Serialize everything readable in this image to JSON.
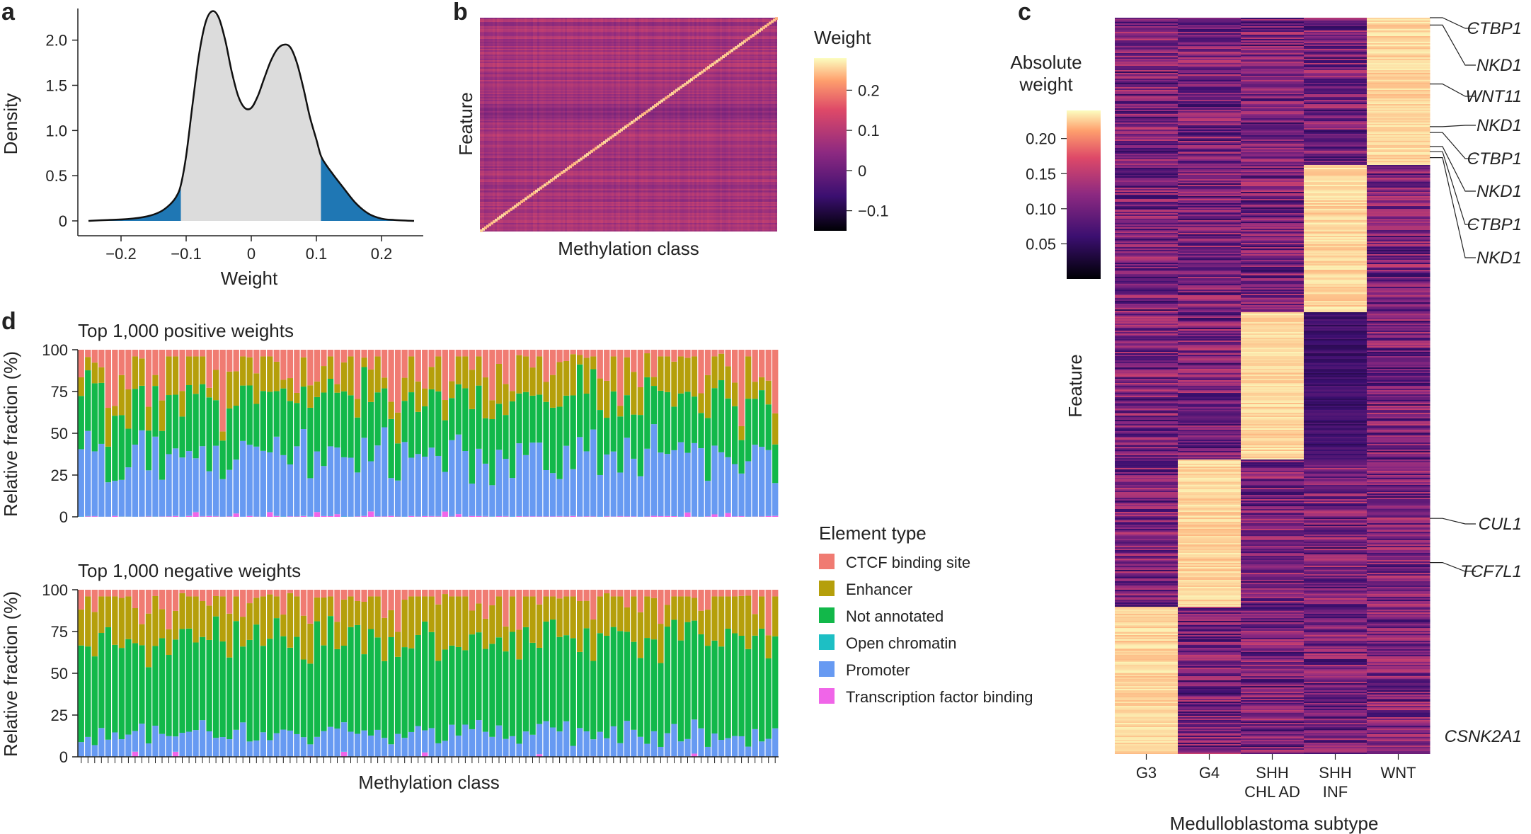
{
  "panel_labels": {
    "a": "a",
    "b": "b",
    "c": "c",
    "d": "d"
  },
  "colors": {
    "ctcf": "#F07B72",
    "enhancer": "#B59F0B",
    "not_annotated": "#12B84A",
    "open_chromatin": "#1DBFC4",
    "promoter": "#679AF2",
    "tf_binding": "#F065E8",
    "density_fill": "#DCDCDC",
    "density_tail": "#1F77B4"
  },
  "chart_data": [
    {
      "id": "a",
      "type": "area",
      "title": "",
      "xlabel": "Weight",
      "ylabel": "Density",
      "xlim": [
        -0.25,
        0.25
      ],
      "ylim": [
        0,
        2.35
      ],
      "xticks": [
        -0.2,
        -0.1,
        0,
        0.1,
        0.2
      ],
      "xtick_labels": [
        "−0.2",
        "−0.1",
        "0",
        "0.1",
        "0.2"
      ],
      "yticks": [
        0,
        0.5,
        1.0,
        1.5,
        2.0
      ],
      "ytick_labels": [
        "0",
        "0.5",
        "1.0",
        "1.5",
        "2.0"
      ],
      "tail_thresholds": [
        -0.108,
        0.107
      ],
      "x": [
        -0.25,
        -0.22,
        -0.19,
        -0.16,
        -0.14,
        -0.125,
        -0.115,
        -0.108,
        -0.1,
        -0.09,
        -0.08,
        -0.07,
        -0.06,
        -0.05,
        -0.04,
        -0.03,
        -0.02,
        -0.01,
        0,
        0.01,
        0.02,
        0.03,
        0.04,
        0.05,
        0.06,
        0.07,
        0.08,
        0.09,
        0.1,
        0.107,
        0.115,
        0.125,
        0.14,
        0.16,
        0.18,
        0.2,
        0.22,
        0.25
      ],
      "y": [
        0.0,
        0.01,
        0.02,
        0.05,
        0.1,
        0.18,
        0.27,
        0.4,
        0.72,
        1.3,
        1.85,
        2.2,
        2.32,
        2.25,
        2.0,
        1.65,
        1.38,
        1.25,
        1.25,
        1.38,
        1.58,
        1.77,
        1.9,
        1.95,
        1.92,
        1.75,
        1.47,
        1.15,
        0.9,
        0.72,
        0.62,
        0.52,
        0.38,
        0.2,
        0.08,
        0.025,
        0.01,
        0.0
      ]
    },
    {
      "id": "b",
      "type": "heatmap",
      "xlabel": "Methylation class",
      "ylabel": "Feature",
      "colorbar_title": "Weight",
      "colorbar_range": [
        -0.15,
        0.28
      ],
      "colorbar_ticks": [
        0.2,
        0.1,
        0,
        -0.1
      ],
      "colorbar_tick_labels": [
        "0.2",
        "0.1",
        "0",
        "−0.1"
      ],
      "description_values": {
        "background_weight": 0.05,
        "diagonal_weight": 0.25
      }
    },
    {
      "id": "c",
      "type": "heatmap",
      "xlabel": "Medulloblastoma subtype",
      "ylabel": "Feature",
      "colorbar_title_line1": "Absolute",
      "colorbar_title_line2": "weight",
      "colorbar_range": [
        0,
        0.24
      ],
      "colorbar_ticks": [
        0.2,
        0.15,
        0.1,
        0.05
      ],
      "colorbar_tick_labels": [
        "0.20",
        "0.15",
        "0.10",
        "0.05"
      ],
      "columns": [
        {
          "line1": "G3",
          "line2": ""
        },
        {
          "line1": "G4",
          "line2": ""
        },
        {
          "line1": "SHH",
          "line2": "CHL AD"
        },
        {
          "line1": "SHH",
          "line2": "INF"
        },
        {
          "line1": "WNT",
          "line2": ""
        }
      ],
      "blocks": [
        {
          "column": 4,
          "start_fraction": 0.0,
          "end_fraction": 0.2
        },
        {
          "column": 3,
          "start_fraction": 0.2,
          "end_fraction": 0.4
        },
        {
          "column": 2,
          "start_fraction": 0.4,
          "end_fraction": 0.6
        },
        {
          "column": 1,
          "start_fraction": 0.6,
          "end_fraction": 0.8
        },
        {
          "column": 0,
          "start_fraction": 0.8,
          "end_fraction": 1.0
        }
      ],
      "genes": [
        {
          "name": "CTBP1",
          "row_fraction": 0.0
        },
        {
          "name": "NKD1",
          "row_fraction": 0.01
        },
        {
          "name": "WNT11",
          "row_fraction": 0.09
        },
        {
          "name": "NKD1",
          "row_fraction": 0.148
        },
        {
          "name": "CTBP1",
          "row_fraction": 0.156
        },
        {
          "name": "NKD1",
          "row_fraction": 0.175
        },
        {
          "name": "CTBP1",
          "row_fraction": 0.182
        },
        {
          "name": "NKD1",
          "row_fraction": 0.19
        },
        {
          "name": "CUL1",
          "row_fraction": 0.68
        },
        {
          "name": "TCF7L1",
          "row_fraction": 0.74
        },
        {
          "name": "CSNK2A1",
          "row_fraction": 0.99
        }
      ]
    },
    {
      "id": "d",
      "type": "bar",
      "stacked": true,
      "xlabel": "Methylation class",
      "ylabel": "Relative fraction (%)",
      "ylim": [
        0,
        100
      ],
      "yticks": [
        0,
        25,
        50,
        75,
        100
      ],
      "n_categories": 104,
      "legend_title": "Element type",
      "legend": [
        "CTCF binding site",
        "Enhancer",
        "Not annotated",
        "Open chromatin",
        "Promoter",
        "Transcription factor binding"
      ],
      "panels": [
        {
          "title": "Top 1,000 positive weights",
          "series_means": {
            "Transcription factor binding": 0.6,
            "Open chromatin": 0.2,
            "Promoter": 39,
            "Not annotated": 33,
            "Enhancer": 15,
            "CTCF binding site": 12.2
          },
          "series_ranges": {
            "Promoter": [
              17,
              60
            ],
            "Not annotated": [
              20,
              46
            ],
            "Enhancer": [
              5,
              27
            ]
          }
        },
        {
          "title": "Top 1,000 negative weights",
          "series_means": {
            "Transcription factor binding": 0.4,
            "Open chromatin": 0.1,
            "Promoter": 10,
            "Not annotated": 60,
            "Enhancer": 23,
            "CTCF binding site": 6.5
          },
          "series_ranges": {
            "Promoter": [
              5,
              25
            ],
            "Not annotated": [
              45,
              75
            ],
            "Enhancer": [
              12,
              35
            ]
          }
        }
      ]
    }
  ]
}
